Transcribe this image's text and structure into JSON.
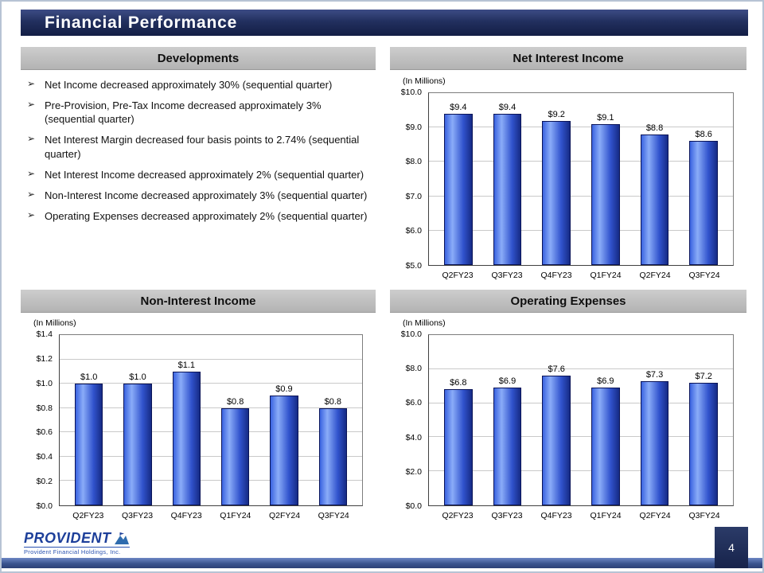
{
  "colors": {
    "title_bar": "#22305f",
    "section_header_bg": "#bfbfbf",
    "bar_fill": "#3153cd",
    "bar_border": "#0a1458",
    "footer_bar": "#3a548f",
    "page_box": "#17234b",
    "logo_blue": "#1d3f9a"
  },
  "slide": {
    "title": "Financial Performance",
    "page_number": "4"
  },
  "developments": {
    "header": "Developments",
    "bullet_glyph": "➢",
    "bullets": [
      "Net Income decreased approximately 30% (sequential quarter)",
      "Pre-Provision, Pre-Tax Income decreased approximately 3% (sequential quarter)",
      "Net Interest Margin decreased four basis points to 2.74% (sequential quarter)",
      "Net Interest Income decreased approximately 2% (sequential quarter)",
      "Non-Interest Income decreased approximately 3% (sequential quarter)",
      "Operating Expenses decreased approximately 2% (sequential quarter)"
    ]
  },
  "footer": {
    "logo_text": "PROVIDENT",
    "logo_tagline": "Provident Financial Holdings, Inc."
  },
  "chart_data": [
    {
      "id": "net-interest-income",
      "type": "bar",
      "title": "Net Interest Income",
      "units_label": "(In Millions)",
      "categories": [
        "Q2FY23",
        "Q3FY23",
        "Q4FY23",
        "Q1FY24",
        "Q2FY24",
        "Q3FY24"
      ],
      "values": [
        9.4,
        9.4,
        9.2,
        9.1,
        8.8,
        8.6
      ],
      "value_labels": [
        "$9.4",
        "$9.4",
        "$9.2",
        "$9.1",
        "$8.8",
        "$8.6"
      ],
      "ylim": [
        5.0,
        10.0
      ],
      "ytick_step": 1.0,
      "ytick_labels": [
        "$5.0",
        "$6.0",
        "$7.0",
        "$8.0",
        "$9.0",
        "$10.0"
      ],
      "grid": true,
      "legend": false
    },
    {
      "id": "non-interest-income",
      "type": "bar",
      "title": "Non-Interest Income",
      "units_label": "(In Millions)",
      "categories": [
        "Q2FY23",
        "Q3FY23",
        "Q4FY23",
        "Q1FY24",
        "Q2FY24",
        "Q3FY24"
      ],
      "values": [
        1.0,
        1.0,
        1.1,
        0.8,
        0.9,
        0.8
      ],
      "value_labels": [
        "$1.0",
        "$1.0",
        "$1.1",
        "$0.8",
        "$0.9",
        "$0.8"
      ],
      "ylim": [
        0.0,
        1.4
      ],
      "ytick_step": 0.2,
      "ytick_labels": [
        "$0.0",
        "$0.2",
        "$0.4",
        "$0.6",
        "$0.8",
        "$1.0",
        "$1.2",
        "$1.4"
      ],
      "grid": true,
      "legend": false
    },
    {
      "id": "operating-expenses",
      "type": "bar",
      "title": "Operating Expenses",
      "units_label": "(In Millions)",
      "categories": [
        "Q2FY23",
        "Q3FY23",
        "Q4FY23",
        "Q1FY24",
        "Q2FY24",
        "Q3FY24"
      ],
      "values": [
        6.8,
        6.9,
        7.6,
        6.9,
        7.3,
        7.2
      ],
      "value_labels": [
        "$6.8",
        "$6.9",
        "$7.6",
        "$6.9",
        "$7.3",
        "$7.2"
      ],
      "ylim": [
        0.0,
        10.0
      ],
      "ytick_step": 2.0,
      "ytick_labels": [
        "$0.0",
        "$2.0",
        "$4.0",
        "$6.0",
        "$8.0",
        "$10.0"
      ],
      "grid": true,
      "legend": false
    }
  ]
}
